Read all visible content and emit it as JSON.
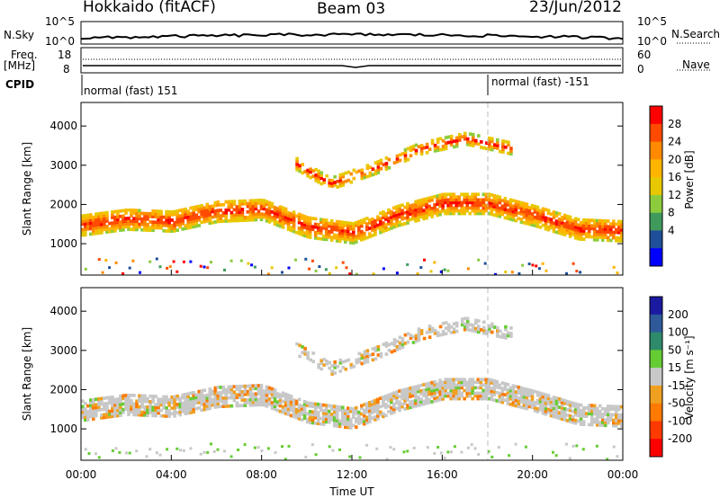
{
  "header": {
    "radar": "Hokkaido (fitACF)",
    "beam": "Beam 03",
    "date": "23/Jun/2012"
  },
  "noise_panel": {
    "left_label": "N.Sky",
    "right_label": "N.Search",
    "yticks": [
      "10^5",
      "10^0"
    ]
  },
  "freq_panel": {
    "left_label_line1": "Freq.",
    "left_label_line2": "[MHz]",
    "left_ticks": [
      "18",
      "8"
    ],
    "right_label": "Nave",
    "right_ticks": [
      "60",
      "0"
    ]
  },
  "cpid_panel": {
    "label": "CPID",
    "modes": [
      "normal (fast) 151",
      "normal (fast) -151"
    ]
  },
  "time_axis": {
    "label": "Time UT",
    "ticks": [
      "00:00",
      "04:00",
      "08:00",
      "12:00",
      "16:00",
      "20:00",
      "00:00"
    ]
  },
  "range_axis": {
    "label": "Slant Range [km]",
    "ticks": [
      "1000",
      "2000",
      "3000",
      "4000"
    ]
  },
  "power_colorbar": {
    "label": "Power [dB]",
    "ticks": [
      "28",
      "24",
      "20",
      "16",
      "12",
      "8",
      "4"
    ],
    "colors": [
      "#ff0000",
      "#ff4a00",
      "#ff8a00",
      "#ffb400",
      "#e8c800",
      "#8ccc3c",
      "#3f9a5c",
      "#1f4f9a",
      "#0000ff"
    ]
  },
  "velocity_colorbar": {
    "label": "Velocity [m s⁻¹]",
    "ticks": [
      "200",
      "100",
      "50",
      "15",
      "-15",
      "-50",
      "-100",
      "-200"
    ],
    "colors": [
      "#1a1aa0",
      "#2e5a9a",
      "#2e8a6a",
      "#66cc33",
      "#c8c8c8",
      "#f0a020",
      "#ff7a00",
      "#ff3a00",
      "#ff0000"
    ]
  },
  "chart_data": [
    {
      "type": "heatmap",
      "title": "Power [dB]",
      "xlabel": "Time UT",
      "ylabel": "Slant Range [km]",
      "xlim": [
        0,
        24
      ],
      "ylim": [
        200,
        4600
      ],
      "bands": [
        {
          "name": "main echo",
          "t": [
            0,
            2,
            4,
            6,
            8,
            10,
            12,
            14,
            16,
            18,
            20,
            22,
            24
          ],
          "range_km": [
            1450,
            1600,
            1550,
            1800,
            1850,
            1400,
            1250,
            1700,
            2000,
            2000,
            1700,
            1350,
            1300
          ]
        },
        {
          "name": "upper echo",
          "t": [
            9.5,
            11,
            13,
            15,
            17,
            19
          ],
          "range_km": [
            3000,
            2500,
            2900,
            3400,
            3650,
            3400
          ]
        }
      ]
    },
    {
      "type": "heatmap",
      "title": "Velocity [m s⁻¹]",
      "xlabel": "Time UT",
      "ylabel": "Slant Range [km]",
      "xlim": [
        0,
        24
      ],
      "ylim": [
        200,
        4600
      ],
      "bands": [
        {
          "name": "main echo",
          "t": [
            0,
            2,
            4,
            6,
            8,
            10,
            12,
            14,
            16,
            18,
            20,
            22,
            24
          ],
          "range_km": [
            1450,
            1600,
            1550,
            1800,
            1850,
            1400,
            1250,
            1700,
            2000,
            2000,
            1700,
            1350,
            1300
          ]
        },
        {
          "name": "upper echo",
          "t": [
            9.5,
            11,
            13,
            15,
            17,
            19
          ],
          "range_km": [
            3000,
            2500,
            2900,
            3400,
            3650,
            3400
          ]
        }
      ]
    }
  ]
}
